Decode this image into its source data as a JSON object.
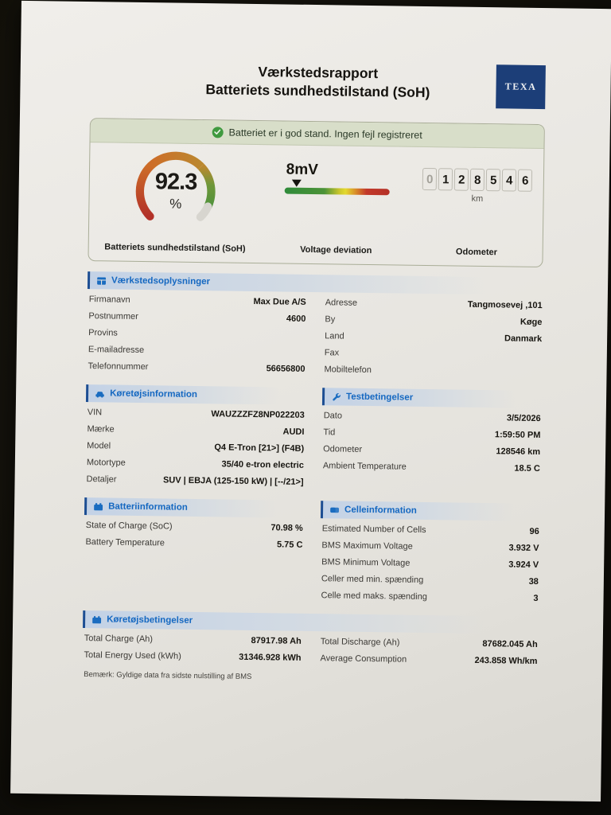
{
  "report": {
    "title_line1": "Værkstedsrapport",
    "title_line2": "Batteriets sundhedstilstand (SoH)",
    "logo_text": "TEXA",
    "note": "Bemærk: Gyldige data fra sidste nulstilling af BMS"
  },
  "summary": {
    "status_text": "Batteriet er i god stand. Ingen fejl registreret",
    "soh": {
      "value": "92.3",
      "unit": "%",
      "percent": 92.3,
      "label": "Batteriets sundhedstilstand (SoH)"
    },
    "voltage_deviation": {
      "value": "8mV",
      "marker_percent": 12,
      "label": "Voltage deviation"
    },
    "odometer": {
      "digits": [
        "0",
        "1",
        "2",
        "8",
        "5",
        "4",
        "6"
      ],
      "dim_leading": 1,
      "unit": "km",
      "label": "Odometer"
    }
  },
  "colors": {
    "texa_navy": "#1c3e78",
    "header_blue": "#1568c1",
    "status_green": "#3f9a3f",
    "gauge_red": "#b23129",
    "gauge_orange": "#cd6d28",
    "gauge_green": "#4f923c",
    "gauge_rest_gray": "#d7d5cf"
  },
  "sections": {
    "workshop": {
      "title": "Værkstedsoplysninger",
      "icon": "building-icon",
      "left_rows": [
        {
          "label": "Firmanavn",
          "value": "Max Due A/S"
        },
        {
          "label": "Postnummer",
          "value": "4600"
        },
        {
          "label": "Provins",
          "value": ""
        },
        {
          "label": "E-mailadresse",
          "value": ""
        },
        {
          "label": "Telefonnummer",
          "value": "56656800"
        }
      ],
      "right_rows": [
        {
          "label": "Adresse",
          "value": "Tangmosevej ,101"
        },
        {
          "label": "By",
          "value": "Køge"
        },
        {
          "label": "Land",
          "value": "Danmark"
        },
        {
          "label": "Fax",
          "value": ""
        },
        {
          "label": "Mobiltelefon",
          "value": ""
        }
      ]
    },
    "vehicle": {
      "title": "Køretøjsinformation",
      "icon": "car-icon",
      "rows": [
        {
          "label": "VIN",
          "value": "WAUZZZFZ8NP022203"
        },
        {
          "label": "Mærke",
          "value": "AUDI"
        },
        {
          "label": "Model",
          "value": "Q4 E-Tron [21>] (F4B)"
        },
        {
          "label": "Motortype",
          "value": "35/40 e-tron electric"
        },
        {
          "label": "Detaljer",
          "value": "SUV | EBJA (125-150 kW) | [--/21>]"
        }
      ]
    },
    "test": {
      "title": "Testbetingelser",
      "icon": "wrench-icon",
      "rows": [
        {
          "label": "Dato",
          "value": "3/5/2026"
        },
        {
          "label": "Tid",
          "value": "1:59:50 PM"
        },
        {
          "label": "Odometer",
          "value": "128546 km"
        },
        {
          "label": "Ambient Temperature",
          "value": "18.5 C"
        }
      ]
    },
    "battery": {
      "title": "Batteriinformation",
      "icon": "battery-icon",
      "rows": [
        {
          "label": "State of Charge (SoC)",
          "value": "70.98 %"
        },
        {
          "label": "Battery Temperature",
          "value": "5.75 C"
        }
      ]
    },
    "cell": {
      "title": "Celleinformation",
      "icon": "cells-icon",
      "rows": [
        {
          "label": "Estimated Number of Cells",
          "value": "96"
        },
        {
          "label": "BMS Maximum Voltage",
          "value": "3.932 V"
        },
        {
          "label": "BMS Minimum Voltage",
          "value": "3.924 V"
        },
        {
          "label": "Celler med min. spænding",
          "value": "38"
        },
        {
          "label": "Celle med maks. spænding",
          "value": "3"
        }
      ]
    },
    "conditions": {
      "title": "Køretøjsbetingelser",
      "icon": "battery-icon",
      "left_rows": [
        {
          "label": "Total Charge (Ah)",
          "value": "87917.98 Ah"
        },
        {
          "label": "Total Energy Used (kWh)",
          "value": "31346.928 kWh"
        }
      ],
      "right_rows": [
        {
          "label": "Total Discharge (Ah)",
          "value": "87682.045 Ah"
        },
        {
          "label": "Average Consumption",
          "value": "243.858 Wh/km"
        }
      ]
    }
  }
}
